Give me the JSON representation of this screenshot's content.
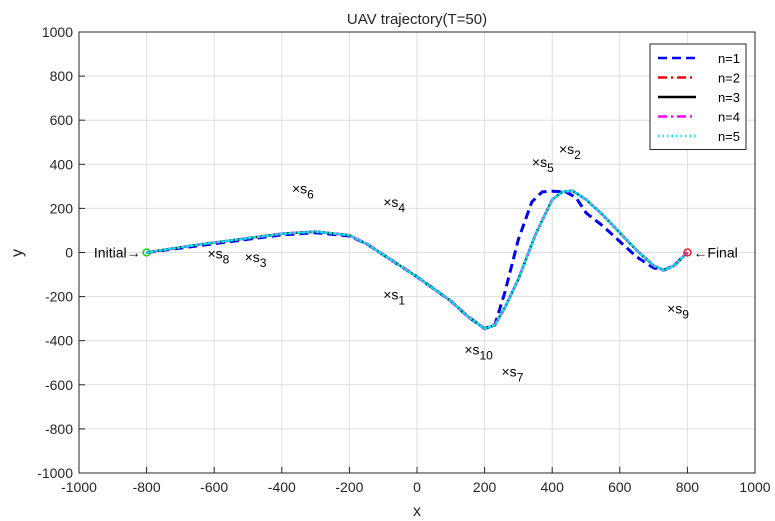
{
  "chart_data": {
    "type": "line",
    "title": "UAV trajectory(T=50)",
    "xlabel": "x",
    "ylabel": "y",
    "xlim": [
      -1000,
      1000
    ],
    "ylim": [
      -1000,
      1000
    ],
    "xticks": [
      -1000,
      -800,
      -600,
      -400,
      -200,
      0,
      200,
      400,
      600,
      800,
      1000
    ],
    "yticks": [
      -1000,
      -800,
      -600,
      -400,
      -200,
      0,
      200,
      400,
      600,
      800,
      1000
    ],
    "grid": true,
    "legend_position": "top-right",
    "series": [
      {
        "name": "n=1",
        "color": "#0000ff",
        "dash": "dashed",
        "x": [
          -800,
          -650,
          -500,
          -400,
          -300,
          -200,
          -150,
          -100,
          0,
          100,
          150,
          200,
          230,
          260,
          300,
          340,
          370,
          400,
          440,
          470,
          500,
          550,
          600,
          650,
          700,
          730,
          760,
          780,
          800
        ],
        "y": [
          0,
          30,
          60,
          80,
          90,
          75,
          40,
          -10,
          -110,
          -220,
          -290,
          -345,
          -330,
          -180,
          60,
          230,
          275,
          278,
          275,
          250,
          180,
          120,
          50,
          -20,
          -70,
          -80,
          -60,
          -30,
          0
        ]
      },
      {
        "name": "n=2",
        "color": "#ff0000",
        "dash": "dashdot",
        "x": [
          -800,
          -650,
          -500,
          -400,
          -300,
          -200,
          -150,
          -100,
          0,
          100,
          150,
          200,
          230,
          260,
          300,
          350,
          400,
          430,
          460,
          500,
          550,
          600,
          650,
          700,
          730,
          760,
          780,
          800
        ],
        "y": [
          0,
          35,
          65,
          85,
          95,
          78,
          40,
          -10,
          -110,
          -220,
          -290,
          -345,
          -330,
          -250,
          -120,
          80,
          240,
          275,
          280,
          240,
          170,
          90,
          10,
          -60,
          -80,
          -60,
          -30,
          0
        ]
      },
      {
        "name": "n=3",
        "color": "#000000",
        "dash": "solid",
        "x": [
          -800,
          -650,
          -500,
          -400,
          -300,
          -200,
          -150,
          -100,
          0,
          100,
          150,
          200,
          230,
          260,
          300,
          350,
          400,
          430,
          460,
          500,
          550,
          600,
          650,
          700,
          730,
          760,
          780,
          800
        ],
        "y": [
          0,
          35,
          65,
          85,
          95,
          78,
          40,
          -10,
          -110,
          -220,
          -290,
          -345,
          -330,
          -250,
          -120,
          80,
          240,
          275,
          280,
          240,
          170,
          90,
          10,
          -60,
          -80,
          -60,
          -30,
          0
        ]
      },
      {
        "name": "n=4",
        "color": "#ff00ff",
        "dash": "dashdot",
        "x": [
          -800,
          -650,
          -500,
          -400,
          -300,
          -200,
          -150,
          -100,
          0,
          100,
          150,
          200,
          230,
          260,
          300,
          350,
          400,
          430,
          460,
          500,
          550,
          600,
          650,
          700,
          730,
          760,
          780,
          800
        ],
        "y": [
          0,
          35,
          65,
          85,
          95,
          78,
          40,
          -10,
          -110,
          -220,
          -290,
          -345,
          -330,
          -250,
          -120,
          80,
          240,
          275,
          280,
          240,
          170,
          90,
          10,
          -60,
          -80,
          -60,
          -30,
          0
        ]
      },
      {
        "name": "n=5",
        "color": "#00e5ee",
        "dash": "dotted",
        "x": [
          -800,
          -650,
          -500,
          -400,
          -300,
          -200,
          -150,
          -100,
          0,
          100,
          150,
          200,
          230,
          260,
          300,
          350,
          400,
          430,
          460,
          500,
          550,
          600,
          650,
          700,
          730,
          760,
          780,
          800
        ],
        "y": [
          0,
          35,
          65,
          85,
          95,
          78,
          40,
          -10,
          -110,
          -220,
          -290,
          -345,
          -330,
          -250,
          -120,
          80,
          240,
          275,
          280,
          240,
          170,
          90,
          10,
          -60,
          -80,
          -60,
          -30,
          0
        ]
      }
    ],
    "points": [
      {
        "label": "s",
        "sub": "1",
        "x": -100,
        "y": -190
      },
      {
        "label": "s",
        "sub": "2",
        "x": 420,
        "y": 470
      },
      {
        "label": "s",
        "sub": "3",
        "x": -510,
        "y": -20
      },
      {
        "label": "s",
        "sub": "4",
        "x": -100,
        "y": 230
      },
      {
        "label": "s",
        "sub": "5",
        "x": 340,
        "y": 410
      },
      {
        "label": "s",
        "sub": "6",
        "x": -370,
        "y": 290
      },
      {
        "label": "s",
        "sub": "7",
        "x": 250,
        "y": -540
      },
      {
        "label": "s",
        "sub": "8",
        "x": -620,
        "y": -5
      },
      {
        "label": "s",
        "sub": "9",
        "x": 740,
        "y": -255
      },
      {
        "label": "s",
        "sub": "10",
        "x": 140,
        "y": -440
      }
    ],
    "endpoints": [
      {
        "label": "Initial",
        "arrow": "→",
        "x": -800,
        "y": 0,
        "color": "#00cc00",
        "side": "left"
      },
      {
        "label": "Final",
        "arrow": "←",
        "x": 800,
        "y": 0,
        "color": "#ff0000",
        "side": "right"
      }
    ]
  }
}
